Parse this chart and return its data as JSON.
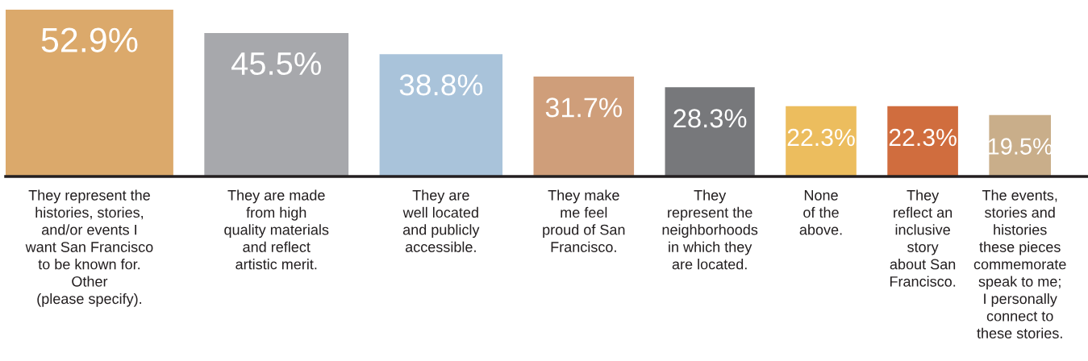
{
  "chart_data": {
    "type": "bar",
    "categories": [
      "They represent the\nhistories, stories,\nand/or events I\nwant San Francisco\nto be known for.\nOther\n(please specify).",
      "They are made\nfrom high\nquality materials\nand reflect\nartistic merit.",
      "They are\nwell located\nand publicly\naccessible.",
      "They make\nme feel\nproud of San\nFrancisco.",
      "They\nrepresent the\nneighborhoods\nin which they\nare located.",
      "None\nof the\nabove.",
      "They\nreflect an\ninclusive\nstory\nabout San\nFrancisco.",
      "The events,\nstories and\nhistories\nthese pieces\ncommemorate\nspeak to me;\nI personally\nconnect to\nthese stories."
    ],
    "values": [
      52.9,
      45.5,
      38.8,
      31.7,
      28.3,
      22.3,
      22.3,
      19.5
    ],
    "value_labels": [
      "52.9%",
      "45.5%",
      "38.8%",
      "31.7%",
      "28.3%",
      "22.3%",
      "22.3%",
      "19.5%"
    ],
    "colors": [
      "#dba96b",
      "#a7a8ac",
      "#a9c3da",
      "#cf9e7a",
      "#77787b",
      "#ecbd5e",
      "#d06d3e",
      "#c9ae8a"
    ],
    "tick_labels": false
  }
}
